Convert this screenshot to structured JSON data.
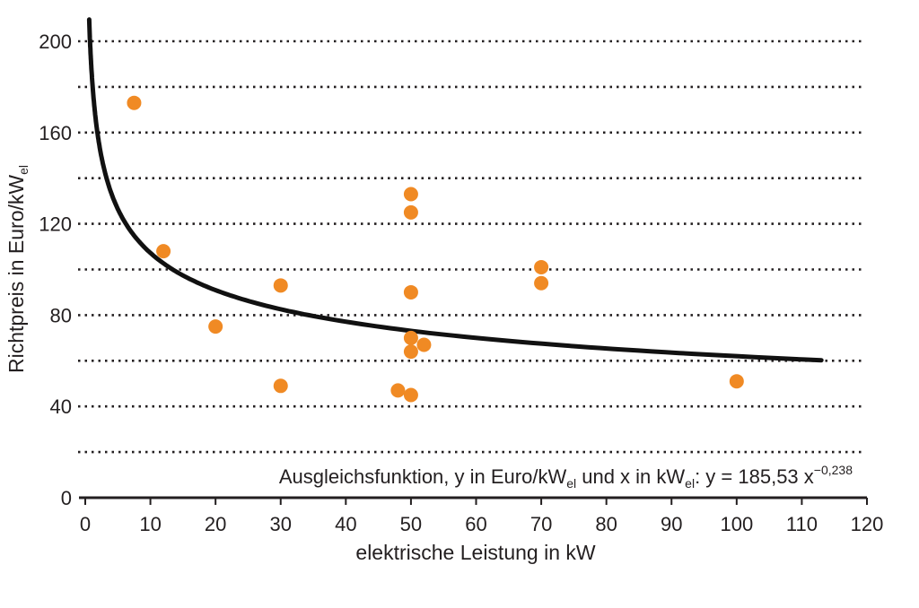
{
  "chart_data": {
    "type": "scatter",
    "xlabel": "elektrische Leistung in kW",
    "ylabel": {
      "main": "Richtpreis in Euro/kW",
      "sub": "el"
    },
    "xlim": [
      0,
      120
    ],
    "ylim": [
      0,
      200
    ],
    "x_ticks": [
      0,
      10,
      20,
      30,
      40,
      50,
      60,
      70,
      80,
      90,
      100,
      110,
      120
    ],
    "y_ticks": [
      0,
      40,
      80,
      120,
      160,
      200
    ],
    "y_gridlines": [
      20,
      40,
      60,
      80,
      100,
      120,
      140,
      160,
      180,
      200
    ],
    "grid": "horizontal dotted",
    "point_color": "#f08a24",
    "curve_color": "#111111",
    "points": [
      {
        "x": 7.5,
        "y": 173
      },
      {
        "x": 12,
        "y": 108
      },
      {
        "x": 20,
        "y": 75
      },
      {
        "x": 30,
        "y": 93
      },
      {
        "x": 30,
        "y": 49
      },
      {
        "x": 48,
        "y": 47
      },
      {
        "x": 50,
        "y": 133
      },
      {
        "x": 50,
        "y": 125
      },
      {
        "x": 50,
        "y": 90
      },
      {
        "x": 50,
        "y": 70
      },
      {
        "x": 50,
        "y": 64
      },
      {
        "x": 50,
        "y": 45
      },
      {
        "x": 52,
        "y": 67
      },
      {
        "x": 70,
        "y": 101
      },
      {
        "x": 70,
        "y": 94
      },
      {
        "x": 100,
        "y": 51
      }
    ],
    "fit": {
      "coefficient": 185.53,
      "exponent": -0.238,
      "x_range": [
        0.6,
        113
      ]
    },
    "annotation": {
      "text1": "Ausgleichsfunktion, y in Euro/kW",
      "sub1": "el",
      "text2": " und x in kW",
      "sub2": "el",
      "text3": ":   y = 185,53 x",
      "sup": "−0,238"
    }
  }
}
